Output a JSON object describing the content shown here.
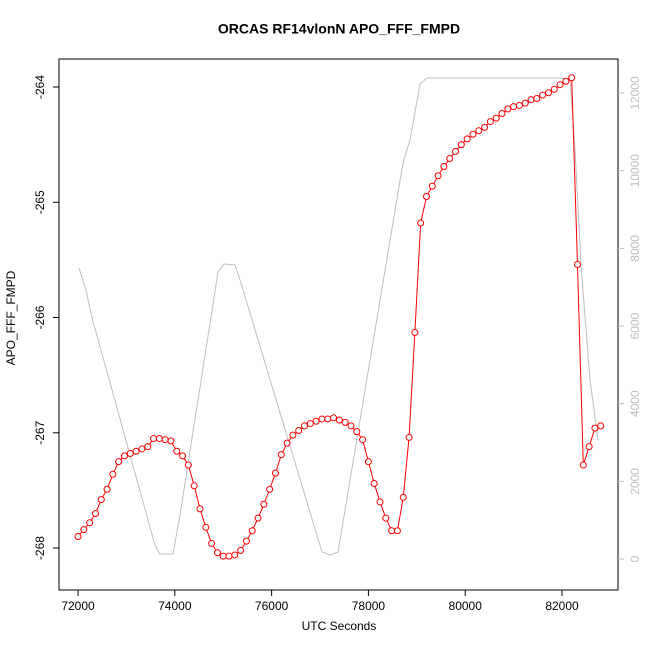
{
  "chart_data": {
    "type": "line",
    "title": "ORCAS RF14vlonN APO_FFF_FMPD",
    "x_label": "UTC Seconds",
    "y_label": "APO_FFF_FMPD",
    "xlim": [
      71607,
      83157
    ],
    "xticks": [
      72000,
      74000,
      76000,
      78000,
      80000,
      82000
    ],
    "ylim": [
      -268.364,
      -263.757
    ],
    "yticks": [
      -268,
      -267,
      -266,
      -265,
      -264
    ],
    "y2lim": [
      -798,
      12877
    ],
    "y2ticks": [
      0,
      2000,
      4000,
      6000,
      8000,
      10000,
      12000
    ],
    "y2_color": "#bebebe",
    "series": [
      {
        "color": "#ff0000",
        "markers": true,
        "x": [
          72000,
          72120,
          72240,
          72360,
          72480,
          72600,
          72720,
          72840,
          72960,
          73080,
          73200,
          73320,
          73440,
          73560,
          73680,
          73800,
          73920,
          74040,
          74160,
          74280,
          74400,
          74520,
          74640,
          74760,
          74880,
          75000,
          75120,
          75240,
          75360,
          75480,
          75600,
          75720,
          75840,
          75960,
          76080,
          76200,
          76320,
          76440,
          76560,
          76680,
          76800,
          76920,
          77040,
          77160,
          77280,
          77400,
          77520,
          77640,
          77760,
          77880,
          78000,
          78120,
          78240,
          78360,
          78480,
          78600,
          78720,
          78840,
          78960,
          79080,
          79200,
          79320,
          79440,
          79560,
          79680,
          79800,
          79920,
          80040,
          80160,
          80280,
          80400,
          80520,
          80640,
          80760,
          80880,
          81000,
          81120,
          81240,
          81360,
          81480,
          81600,
          81720,
          81840,
          81960,
          82080,
          82200,
          82320,
          82440,
          82560,
          82680,
          82800
        ],
        "values": [
          -267.9,
          -267.84,
          -267.78,
          -267.7,
          -267.58,
          -267.49,
          -267.36,
          -267.25,
          -267.2,
          -267.18,
          -267.16,
          -267.14,
          -267.12,
          -267.05,
          -267.05,
          -267.06,
          -267.07,
          -267.16,
          -267.2,
          -267.28,
          -267.46,
          -267.66,
          -267.82,
          -267.96,
          -268.04,
          -268.07,
          -268.07,
          -268.06,
          -268.02,
          -267.94,
          -267.85,
          -267.74,
          -267.62,
          -267.49,
          -267.35,
          -267.19,
          -267.09,
          -267.02,
          -266.98,
          -266.94,
          -266.92,
          -266.9,
          -266.88,
          -266.88,
          -266.87,
          -266.89,
          -266.91,
          -266.94,
          -266.99,
          -267.06,
          -267.25,
          -267.44,
          -267.6,
          -267.74,
          -267.85,
          -267.85,
          -267.56,
          -267.04,
          -266.13,
          -265.18,
          -264.95,
          -264.86,
          -264.77,
          -264.69,
          -264.62,
          -264.56,
          -264.5,
          -264.45,
          -264.41,
          -264.38,
          -264.35,
          -264.3,
          -264.27,
          -264.23,
          -264.19,
          -264.17,
          -264.16,
          -264.14,
          -264.11,
          -264.1,
          -264.07,
          -264.05,
          -264.02,
          -263.98,
          -263.95,
          -263.92,
          -265.54,
          -267.28,
          -267.12,
          -266.96,
          -266.94
        ]
      },
      {
        "color": "#bebebe",
        "axis": "y2",
        "markers": false,
        "x": [
          72021,
          72165,
          72290,
          73590,
          73694,
          73963,
          74107,
          74893,
          75017,
          75244,
          75347,
          77041,
          77207,
          77372,
          78715,
          78860,
          79066,
          79211,
          81959,
          82165,
          82269,
          82393,
          82579,
          82744
        ],
        "values": [
          7494,
          6928,
          6207,
          361,
          129,
          129,
          1133,
          7391,
          7597,
          7571,
          7185,
          180,
          103,
          180,
          10198,
          10791,
          12233,
          12387,
          12387,
          12362,
          10533,
          7571,
          4610,
          3065
        ]
      }
    ]
  }
}
